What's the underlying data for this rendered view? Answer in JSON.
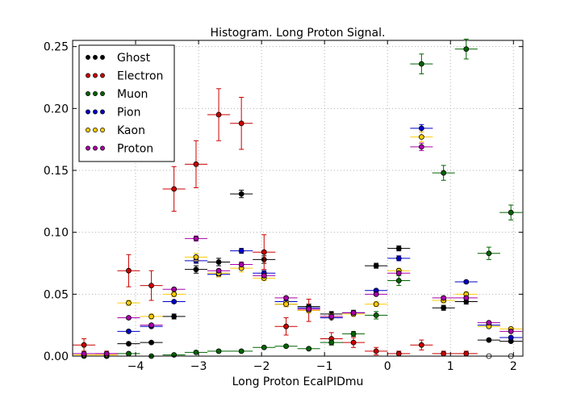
{
  "chart_data": {
    "type": "scatter",
    "title": "Histogram. Long Proton Signal.",
    "xlabel": "Long Proton EcalPIDmu",
    "ylabel": "",
    "xlim": [
      -5.0,
      2.15
    ],
    "ylim": [
      0.0,
      0.255
    ],
    "x_ticks": [
      -4,
      -3,
      -2,
      -1,
      0,
      1,
      2
    ],
    "x_tick_labels": [
      "−4",
      "−3",
      "−2",
      "−1",
      "0",
      "1",
      "2"
    ],
    "y_ticks": [
      0.0,
      0.05,
      0.1,
      0.15,
      0.2,
      0.25
    ],
    "y_tick_labels": [
      "0.00",
      "0.05",
      "0.10",
      "0.15",
      "0.20",
      "0.25"
    ],
    "grid": true,
    "legend_position": "top-left",
    "bin_half_width": 0.18,
    "x": [
      -4.82,
      -4.46,
      -4.11,
      -3.75,
      -3.39,
      -3.04,
      -2.68,
      -2.32,
      -1.96,
      -1.61,
      -1.25,
      -0.89,
      -0.54,
      -0.18,
      0.18,
      0.54,
      0.89,
      1.25,
      1.61,
      1.96
    ],
    "series": [
      {
        "name": "Ghost",
        "color": "#000000",
        "values": [
          0.001,
          0.0,
          0.01,
          0.011,
          0.032,
          0.07,
          0.076,
          0.131,
          0.078,
          0.042,
          0.04,
          0.034,
          0.035,
          0.073,
          0.087,
          null,
          0.039,
          0.044,
          0.013,
          0.012
        ],
        "errors": [
          0.001,
          0.0,
          0.001,
          0.001,
          0.002,
          0.003,
          0.003,
          0.003,
          0.003,
          0.002,
          0.002,
          0.002,
          0.002,
          0.002,
          0.002,
          null,
          0.002,
          0.002,
          0.001,
          0.001
        ]
      },
      {
        "name": "Electron",
        "color": "#cc0000",
        "values": [
          0.009,
          0.002,
          0.069,
          0.057,
          0.135,
          0.155,
          0.195,
          0.188,
          0.084,
          0.024,
          0.037,
          0.014,
          0.011,
          0.004,
          0.002,
          0.009,
          0.002,
          0.002,
          0.0,
          0.0
        ],
        "errors": [
          0.005,
          0.002,
          0.013,
          0.012,
          0.018,
          0.019,
          0.021,
          0.021,
          0.014,
          0.007,
          0.009,
          0.005,
          0.004,
          0.003,
          0.002,
          0.004,
          0.002,
          0.002,
          0.0,
          0.0
        ],
        "open": [
          false,
          false,
          false,
          false,
          false,
          false,
          false,
          false,
          false,
          false,
          false,
          false,
          false,
          false,
          false,
          false,
          false,
          false,
          true,
          true
        ]
      },
      {
        "name": "Muon",
        "color": "#006400",
        "values": [
          0.0,
          0.0,
          0.002,
          0.0,
          0.001,
          0.003,
          0.004,
          0.004,
          0.007,
          0.008,
          0.006,
          0.011,
          0.018,
          0.033,
          0.061,
          0.236,
          0.148,
          0.248,
          0.083,
          0.116
        ],
        "errors": [
          0.0,
          0.0,
          0.001,
          0.0,
          0.001,
          0.001,
          0.001,
          0.001,
          0.001,
          0.001,
          0.001,
          0.002,
          0.002,
          0.003,
          0.004,
          0.008,
          0.006,
          0.008,
          0.005,
          0.006
        ]
      },
      {
        "name": "Pion",
        "color": "#0000cc",
        "values": [
          0.001,
          0.001,
          0.02,
          0.024,
          0.044,
          0.077,
          0.066,
          0.085,
          0.067,
          0.044,
          0.039,
          0.031,
          0.035,
          0.053,
          0.079,
          0.184,
          0.045,
          0.06,
          0.025,
          0.015
        ],
        "errors": [
          0.0,
          0.0,
          0.001,
          0.001,
          0.001,
          0.002,
          0.002,
          0.002,
          0.002,
          0.001,
          0.001,
          0.001,
          0.001,
          0.001,
          0.002,
          0.003,
          0.001,
          0.001,
          0.001,
          0.001
        ]
      },
      {
        "name": "Kaon",
        "color": "#ffcc00",
        "values": [
          0.001,
          0.001,
          0.043,
          0.032,
          0.05,
          0.08,
          0.067,
          0.071,
          0.063,
          0.042,
          0.037,
          0.032,
          0.034,
          0.042,
          0.069,
          0.177,
          0.045,
          0.05,
          0.024,
          0.022
        ],
        "errors": [
          0.0,
          0.0,
          0.002,
          0.002,
          0.002,
          0.003,
          0.003,
          0.003,
          0.002,
          0.002,
          0.002,
          0.002,
          0.002,
          0.002,
          0.002,
          0.004,
          0.002,
          0.002,
          0.001,
          0.001
        ]
      },
      {
        "name": "Proton",
        "color": "#aa00aa",
        "values": [
          0.002,
          0.002,
          0.031,
          0.025,
          0.054,
          0.095,
          0.069,
          0.074,
          0.065,
          0.047,
          0.038,
          0.032,
          0.035,
          0.05,
          0.067,
          0.169,
          0.047,
          0.047,
          0.027,
          0.02
        ],
        "errors": [
          0.0,
          0.0,
          0.001,
          0.001,
          0.001,
          0.002,
          0.001,
          0.002,
          0.001,
          0.001,
          0.001,
          0.001,
          0.001,
          0.001,
          0.001,
          0.003,
          0.001,
          0.001,
          0.001,
          0.001
        ]
      }
    ]
  }
}
